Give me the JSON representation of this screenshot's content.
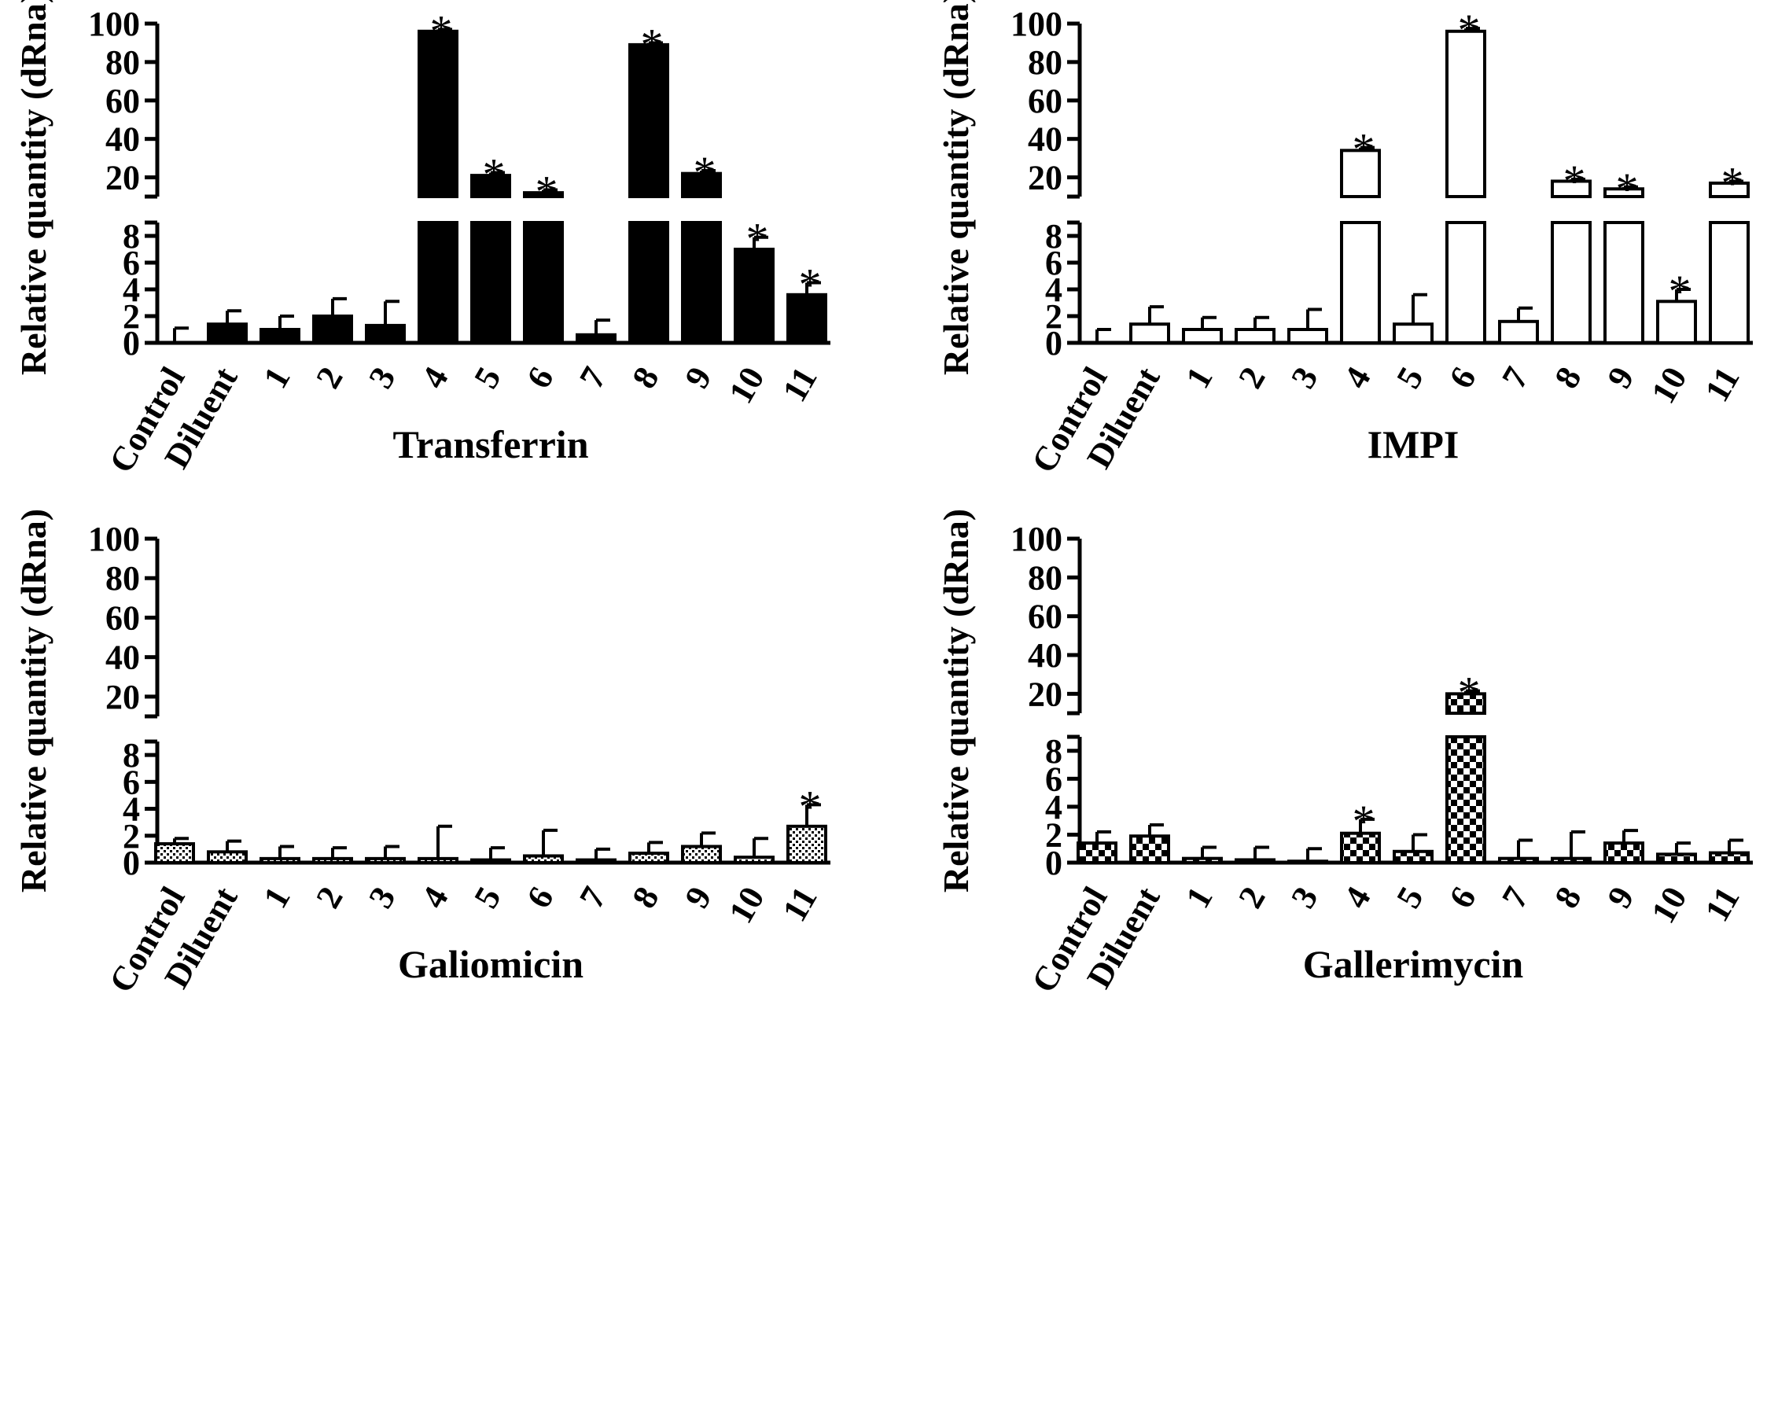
{
  "chart_data": [
    {
      "type": "bar",
      "title": "Transferrin",
      "ylabel": "Relative quantity (dRna)",
      "fill": "solid",
      "categories": [
        "Control",
        "Diluent",
        "1",
        "2",
        "3",
        "4",
        "5",
        "6",
        "7",
        "8",
        "9",
        "10",
        "11"
      ],
      "values": [
        0,
        1.4,
        1.0,
        2.0,
        1.3,
        96,
        21,
        12,
        0.6,
        89,
        22,
        7.0,
        3.6
      ],
      "errors": [
        1.1,
        1.0,
        1.0,
        1.3,
        1.8,
        1,
        1.5,
        1.5,
        1.1,
        1,
        1.5,
        0.9,
        0.9
      ],
      "significant": [
        false,
        false,
        false,
        false,
        false,
        true,
        true,
        true,
        false,
        true,
        true,
        true,
        true
      ],
      "y_axis_break": {
        "lower": [
          0,
          9
        ],
        "upper": [
          10,
          100
        ]
      },
      "yticks_lower": [
        "0",
        "2",
        "4",
        "6",
        "8"
      ],
      "yticks_upper": [
        "20",
        "40",
        "60",
        "80",
        "100"
      ]
    },
    {
      "type": "bar",
      "title": "IMPI",
      "ylabel": "Relative quantity (dRna)",
      "fill": "hollow",
      "categories": [
        "Control",
        "Diluent",
        "1",
        "2",
        "3",
        "4",
        "5",
        "6",
        "7",
        "8",
        "9",
        "10",
        "11"
      ],
      "values": [
        0,
        1.4,
        1.0,
        1.0,
        1.0,
        34,
        1.4,
        96,
        1.6,
        18,
        14,
        3.1,
        17
      ],
      "errors": [
        1.0,
        1.3,
        0.9,
        0.9,
        1.5,
        1.5,
        2.2,
        1.5,
        1.0,
        1,
        1,
        0.9,
        1
      ],
      "significant": [
        false,
        false,
        false,
        false,
        false,
        true,
        false,
        true,
        false,
        true,
        true,
        true,
        true
      ],
      "y_axis_break": {
        "lower": [
          0,
          9
        ],
        "upper": [
          10,
          100
        ]
      },
      "yticks_lower": [
        "0",
        "2",
        "4",
        "6",
        "8"
      ],
      "yticks_upper": [
        "20",
        "40",
        "60",
        "80",
        "100"
      ]
    },
    {
      "type": "bar",
      "title": "Galiomicin",
      "ylabel": "Relative quantity (dRna)",
      "fill": "dots",
      "categories": [
        "Control",
        "Diluent",
        "1",
        "2",
        "3",
        "4",
        "5",
        "6",
        "7",
        "8",
        "9",
        "10",
        "11"
      ],
      "values": [
        1.4,
        0.8,
        0.3,
        0.3,
        0.3,
        0.3,
        0.2,
        0.5,
        0.2,
        0.7,
        1.2,
        0.4,
        2.7
      ],
      "errors": [
        0.4,
        0.8,
        0.9,
        0.8,
        0.9,
        2.4,
        0.9,
        1.9,
        0.8,
        0.8,
        1.0,
        1.4,
        1.6
      ],
      "significant": [
        false,
        false,
        false,
        false,
        false,
        false,
        false,
        false,
        false,
        false,
        false,
        false,
        true
      ],
      "y_axis_break": {
        "lower": [
          0,
          9
        ],
        "upper": [
          10,
          100
        ]
      },
      "yticks_lower": [
        "0",
        "2",
        "4",
        "6",
        "8"
      ],
      "yticks_upper": [
        "20",
        "40",
        "60",
        "80",
        "100"
      ]
    },
    {
      "type": "bar",
      "title": "Gallerimycin",
      "ylabel": "Relative quantity (dRna)",
      "fill": "checker",
      "categories": [
        "Control",
        "Diluent",
        "1",
        "2",
        "3",
        "4",
        "5",
        "6",
        "7",
        "8",
        "9",
        "10",
        "11"
      ],
      "values": [
        1.4,
        1.9,
        0.3,
        0.2,
        0.1,
        2.1,
        0.8,
        20,
        0.3,
        0.3,
        1.4,
        0.6,
        0.7
      ],
      "errors": [
        0.8,
        0.8,
        0.8,
        0.9,
        0.9,
        1.0,
        1.2,
        1.5,
        1.3,
        1.9,
        0.9,
        0.8,
        0.9
      ],
      "significant": [
        false,
        false,
        false,
        false,
        false,
        true,
        false,
        true,
        false,
        false,
        false,
        false,
        false
      ],
      "y_axis_break": {
        "lower": [
          0,
          9
        ],
        "upper": [
          10,
          100
        ]
      },
      "yticks_lower": [
        "0",
        "2",
        "4",
        "6",
        "8"
      ],
      "yticks_upper": [
        "20",
        "40",
        "60",
        "80",
        "100"
      ]
    }
  ],
  "significance_marker": "*"
}
